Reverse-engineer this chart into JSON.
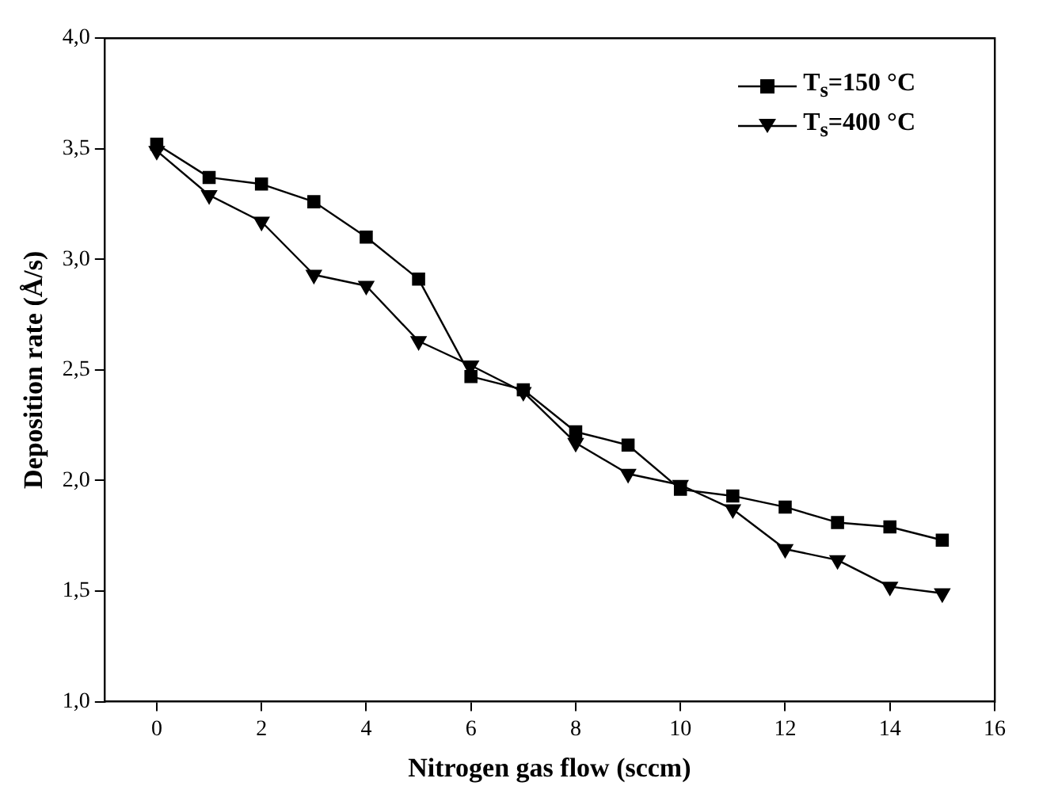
{
  "chart_data": {
    "type": "line",
    "xlabel": "Nitrogen gas flow (sccm)",
    "ylabel": "Deposition rate (Å/s)",
    "x": [
      0,
      1,
      2,
      3,
      4,
      5,
      6,
      7,
      8,
      9,
      10,
      11,
      12,
      13,
      14,
      15
    ],
    "series": [
      {
        "name": "T$_{s}$=150 °C",
        "color": "#000000",
        "marker": "square",
        "values": [
          3.52,
          3.37,
          3.34,
          3.26,
          3.1,
          2.91,
          2.47,
          2.41,
          2.22,
          2.16,
          1.96,
          1.93,
          1.88,
          1.81,
          1.79,
          1.73
        ]
      },
      {
        "name": "T$_{s}$=400 °C",
        "color": "#000000",
        "marker": "triangle",
        "values": [
          3.49,
          3.29,
          3.17,
          2.93,
          2.88,
          2.63,
          2.52,
          2.4,
          2.17,
          2.03,
          1.98,
          1.87,
          1.69,
          1.64,
          1.52,
          1.49
        ]
      }
    ],
    "xlim": [
      -1,
      16
    ],
    "xticks": [
      0,
      2,
      4,
      6,
      8,
      10,
      12,
      14,
      16
    ],
    "ylim": [
      1,
      4
    ],
    "yticks": [
      {
        "value": 1,
        "label": "1,0"
      },
      {
        "value": 1.5,
        "label": "1,5"
      },
      {
        "value": 2,
        "label": "2,0"
      },
      {
        "value": 2.5,
        "label": "2,5"
      },
      {
        "value": 3,
        "label": "3,0"
      },
      {
        "value": 3.5,
        "label": "3,5"
      },
      {
        "value": 4,
        "label": "4,0"
      }
    ],
    "grid": false,
    "legend": "top right",
    "line_style": "solid"
  }
}
